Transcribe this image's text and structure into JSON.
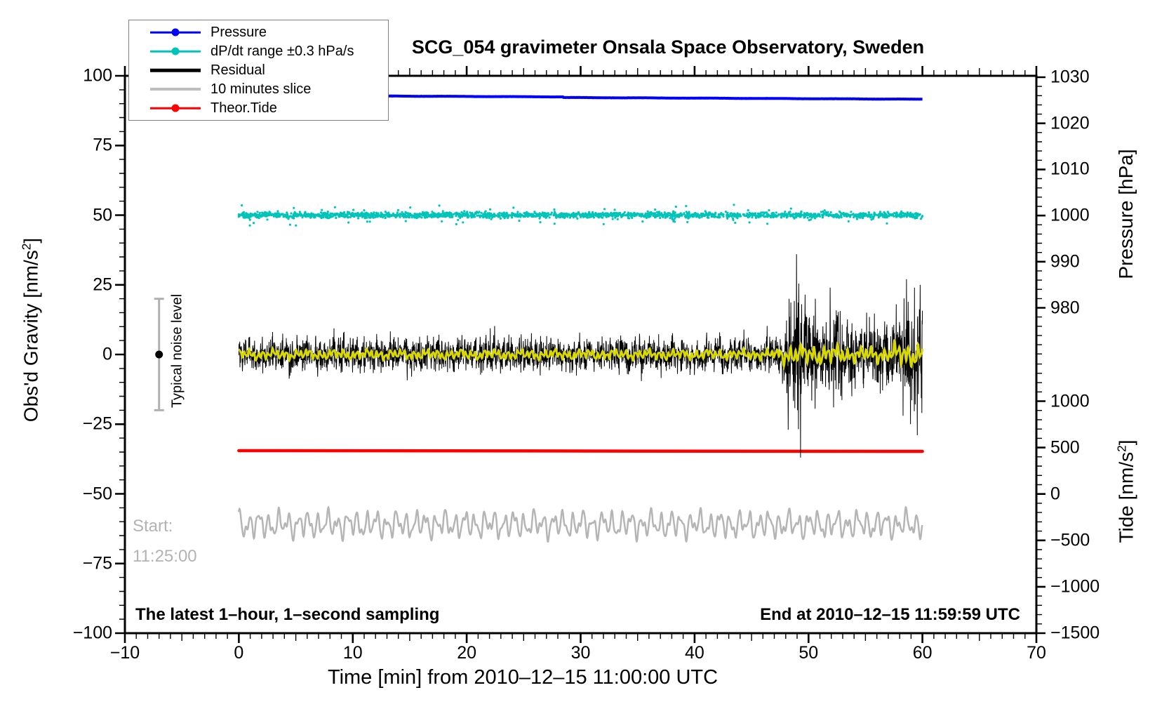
{
  "title": "SCG_054 gravimeter Onsala Space Observatory, Sweden",
  "legend": {
    "items": [
      {
        "label": "Pressure",
        "color": "#0000ff",
        "symbol": "line-dot",
        "weight": 2.5
      },
      {
        "label": "dP/dt range ±0.3 hPa/s",
        "color": "#00c4ba",
        "symbol": "line-dot",
        "weight": 2.5
      },
      {
        "label": "Residual",
        "color": "#000000",
        "symbol": "line",
        "weight": 4.5
      },
      {
        "label": "10 minutes slice",
        "color": "#bdbdbd",
        "symbol": "line",
        "weight": 4
      },
      {
        "label": "Theor.Tide",
        "color": "#ff0000",
        "symbol": "line-dot",
        "weight": 2.5
      }
    ]
  },
  "annotations": {
    "noise_label": "Typical noise level",
    "start_label": "Start:",
    "start_time": "11:25:00",
    "footer_left": "The latest 1–hour, 1–second sampling",
    "footer_right": "End at 2010–12–15 11:59:59 UTC"
  },
  "chart_data": {
    "type": "line",
    "title": "SCG_054 gravimeter Onsala Space Observatory, Sweden",
    "x": {
      "label": "Time [min] from 2010–12–15 11:00:00 UTC",
      "range": [
        -10,
        70
      ],
      "tick_values": [
        -10,
        0,
        10,
        20,
        30,
        40,
        50,
        60,
        70
      ],
      "tick_labels": [
        "−10",
        "0",
        "10",
        "20",
        "30",
        "40",
        "50",
        "60",
        "70"
      ],
      "minor_step_min": 1,
      "medium_step_min": 5,
      "data_span_min": [
        0,
        60
      ]
    },
    "y_left": {
      "label": "Obs'd Gravity [nm/s²]",
      "label_base": "Obs'd Gravity [nm/s",
      "label_sup": "2",
      "label_close": "]",
      "range": [
        -100,
        100
      ],
      "tick_values": [
        100,
        75,
        50,
        25,
        0,
        -25,
        -50,
        -75,
        -100
      ],
      "tick_labels": [
        "100",
        "75",
        "50",
        "25",
        "0",
        "−25",
        "−50",
        "−75",
        "−100"
      ],
      "minor_step": 5
    },
    "y_right_pressure": {
      "label": "Pressure [hPa]",
      "tick_values": [
        1030,
        1020,
        1010,
        1000,
        990,
        980
      ],
      "tick_labels": [
        "1030",
        "1020",
        "1010",
        "1000",
        "990",
        "980"
      ],
      "minor_step_hPa": 2
    },
    "y_right_tide": {
      "label": "Tide [nm/s²]",
      "label_base": "Tide [nm/s",
      "label_sup": "2",
      "label_close": "]",
      "tick_values": [
        1000,
        500,
        0,
        -500,
        -1000,
        -1500
      ],
      "tick_labels": [
        "1000",
        "500",
        "0",
        "−500",
        "−1000",
        "−1500"
      ],
      "minor_step": 100
    },
    "series": [
      {
        "key": "pressure",
        "name": "Pressure",
        "type": "line",
        "axis": "pressure",
        "color": "#0000ff",
        "x_start": 0,
        "x_end": 60,
        "value_start_hPa": 1026.0,
        "value_end_hPa": 1025.3,
        "step_down_at_min": 28.5
      },
      {
        "key": "dpdt",
        "name": "dP/dt range ±0.3 hPa/s",
        "type": "scatter",
        "axis": "left",
        "color": "#00c4ba",
        "x_start": 0,
        "x_end": 60,
        "center_value": 50,
        "typical_spread": 1.0,
        "outlier_max": 6
      },
      {
        "key": "residual",
        "name": "Residual",
        "type": "line",
        "axis": "left",
        "color": "#000000",
        "x_start": 0,
        "x_end": 60,
        "center_value": 0,
        "quiet_peak": 10,
        "burst_start_min": 48,
        "burst_max_value": 36,
        "burst_min_value": -37
      },
      {
        "key": "residual_smooth",
        "name": "Residual smoothed",
        "type": "line",
        "axis": "left",
        "color": "#d8d800",
        "x_start": 0,
        "x_end": 60,
        "center_value": 0,
        "quiet_amplitude": 1.6,
        "burst_amplitude": 3.5
      },
      {
        "key": "tide",
        "name": "Theor.Tide",
        "type": "line",
        "axis": "tide",
        "color": "#ff0000",
        "x_start": 0,
        "x_end": 60,
        "value_start": 467,
        "value_end": 459
      },
      {
        "key": "slice",
        "name": "10 minutes slice",
        "type": "line",
        "axis": "left",
        "color": "#b5b5b5",
        "x_start": 0,
        "x_end": 60,
        "center_value": -61,
        "amplitude": 6
      }
    ],
    "noise_bar": {
      "x_min": -7,
      "center": 0,
      "half_range": 20,
      "bar_color": "#b0b0b0",
      "dot_color": "#000000"
    }
  }
}
